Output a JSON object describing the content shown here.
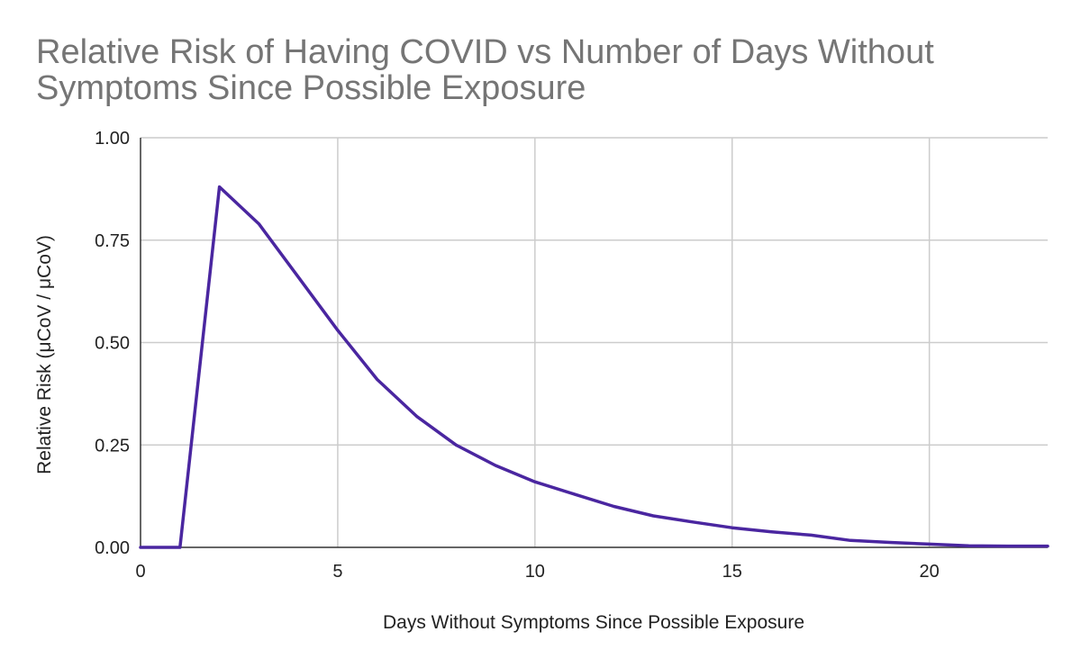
{
  "chart_data": {
    "type": "line",
    "title_lines": [
      "Relative Risk of Having COVID vs Number of Days Without",
      "Symptoms Since Possible Exposure"
    ],
    "xlabel": "Days Without Symptoms Since Possible Exposure",
    "ylabel": "Relative Risk (μCoV / μCoV)",
    "xlim": [
      0,
      23
    ],
    "ylim": [
      0,
      1
    ],
    "x_ticks": [
      0,
      5,
      10,
      15,
      20
    ],
    "x_tick_labels": [
      "0",
      "5",
      "10",
      "15",
      "20"
    ],
    "y_ticks": [
      0,
      0.25,
      0.5,
      0.75,
      1
    ],
    "y_tick_labels": [
      "0.00",
      "0.25",
      "0.50",
      "0.75",
      "1.00"
    ],
    "grid": true,
    "legend": "none",
    "series": [
      {
        "color": "#4a26a0",
        "x": [
          0,
          1,
          2,
          3,
          4,
          5,
          6,
          7,
          8,
          9,
          10,
          11,
          12,
          13,
          14,
          15,
          16,
          17,
          18,
          19,
          20,
          21,
          22,
          23
        ],
        "y": [
          0,
          0,
          0.88,
          0.79,
          0.66,
          0.53,
          0.41,
          0.32,
          0.25,
          0.2,
          0.16,
          0.13,
          0.1,
          0.077,
          0.062,
          0.048,
          0.038,
          0.03,
          0.017,
          0.012,
          0.008,
          0.004,
          0.003,
          0.003
        ]
      }
    ]
  }
}
